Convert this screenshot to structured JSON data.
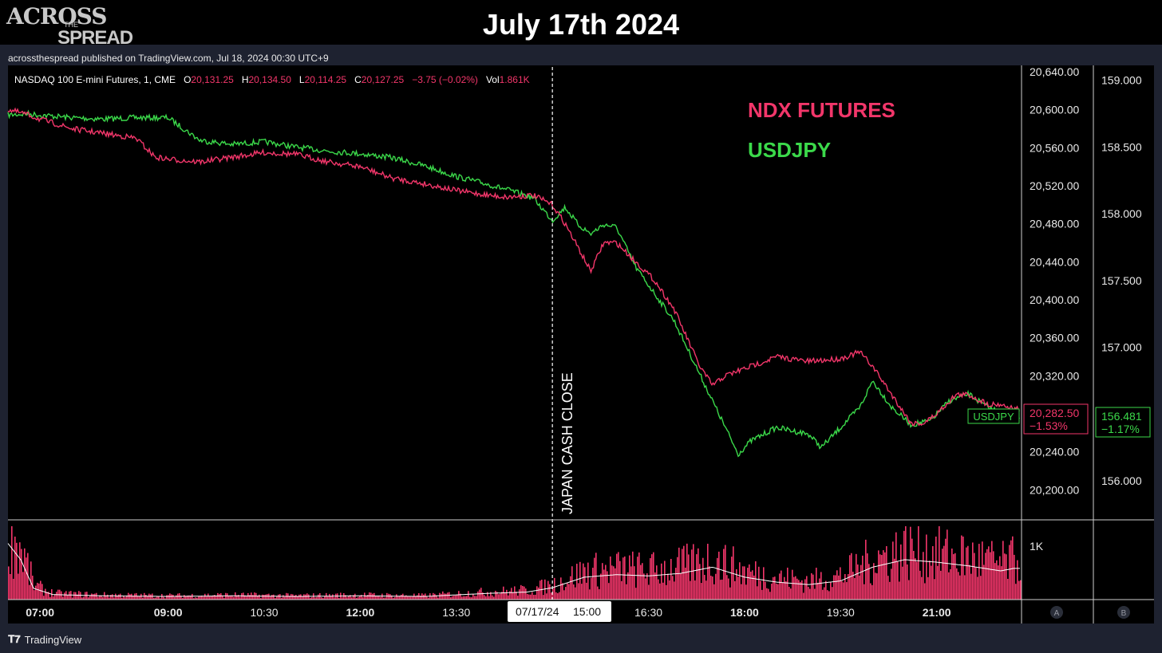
{
  "header": {
    "title": "July 17th 2024",
    "logo_line1": "ACROSS",
    "logo_line2": "THE",
    "logo_line3": "SPREAD",
    "published": "acrossthespread published on TradingView.com, Jul 18, 2024 00:30 UTC+9"
  },
  "legend": {
    "instrument": "NASDAQ 100 E-mini Futures, 1, CME",
    "open_label": "O",
    "open": "20,131.25",
    "high_label": "H",
    "high": "20,134.50",
    "low_label": "L",
    "low": "20,114.25",
    "close_label": "C",
    "close": "20,127.25",
    "change": "−3.75 (−0.02%)",
    "vol_label": "Vol",
    "vol": "1.861K"
  },
  "annotations": {
    "ndx": "NDX FUTURES",
    "usdjpy": "USDJPY",
    "japan_close": "JAPAN CASH CLOSE",
    "usdjpy_tag": "USDJPY",
    "ndx_last_price": "20,282.50",
    "ndx_last_change": "−1.53%",
    "jpy_last_price": "156.481",
    "jpy_last_change": "−1.17%",
    "vol_axis_label": "1K",
    "crosshair_date": "07/17/24",
    "crosshair_time": "15:00",
    "scale_a": "A",
    "scale_b": "B"
  },
  "brand": {
    "name": "TradingView",
    "icon": "tradingview-logo-icon"
  },
  "colors": {
    "ndx": "#f2366a",
    "usdjpy": "#3bd94a",
    "volume": "#f2366a",
    "background": "#000000"
  },
  "chart_data": {
    "type": "line",
    "x_ticks": [
      {
        "label": "07:00",
        "h": 7.0,
        "bold": true
      },
      {
        "label": "09:00",
        "h": 9.0,
        "bold": true
      },
      {
        "label": "10:30",
        "h": 10.5,
        "bold": false
      },
      {
        "label": "12:00",
        "h": 12.0,
        "bold": true
      },
      {
        "label": "13:30",
        "h": 13.5,
        "bold": false
      },
      {
        "label": "16:30",
        "h": 16.5,
        "bold": false
      },
      {
        "label": "18:00",
        "h": 18.0,
        "bold": true
      },
      {
        "label": "19:30",
        "h": 19.5,
        "bold": false
      },
      {
        "label": "21:00",
        "h": 21.0,
        "bold": true
      }
    ],
    "xlim": [
      6.5,
      22.3
    ],
    "left_axis": {
      "ticks": [
        "20,640.00",
        "20,600.00",
        "20,560.00",
        "20,520.00",
        "20,480.00",
        "20,440.00",
        "20,400.00",
        "20,360.00",
        "20,320.00",
        "20,240.00",
        "20,200.00"
      ],
      "tick_values": [
        20640,
        20600,
        20560,
        20520,
        20480,
        20440,
        20400,
        20360,
        20320,
        20240,
        20200
      ],
      "ylim": [
        20170,
        20645
      ]
    },
    "right_axis": {
      "ticks": [
        "159.000",
        "158.500",
        "158.000",
        "157.500",
        "157.000",
        "156.000"
      ],
      "tick_values": [
        159.0,
        158.5,
        158.0,
        157.5,
        157.0,
        156.0
      ],
      "ylim": [
        155.72,
        159.1
      ]
    },
    "japan_cash_close_h": 15.0,
    "series": [
      {
        "name": "NDX FUTURES",
        "axis": "left",
        "x": [
          6.5,
          6.8,
          7.0,
          7.5,
          8.0,
          8.5,
          8.8,
          9.0,
          9.5,
          10.0,
          10.5,
          11.0,
          11.5,
          12.0,
          12.5,
          13.0,
          13.5,
          14.0,
          14.3,
          14.7,
          15.0,
          15.2,
          15.4,
          15.6,
          15.8,
          16.0,
          16.3,
          16.6,
          16.9,
          17.1,
          17.3,
          17.5,
          17.7,
          17.9,
          18.1,
          18.5,
          19.0,
          19.5,
          19.8,
          20.0,
          20.2,
          20.4,
          20.6,
          20.8,
          21.0,
          21.3,
          21.5,
          21.8,
          22.0,
          22.2
        ],
        "values": [
          20600,
          20595,
          20590,
          20580,
          20575,
          20570,
          20550,
          20548,
          20545,
          20550,
          20555,
          20553,
          20545,
          20540,
          20528,
          20522,
          20515,
          20510,
          20508,
          20510,
          20500,
          20480,
          20455,
          20430,
          20460,
          20460,
          20440,
          20420,
          20390,
          20360,
          20330,
          20310,
          20320,
          20325,
          20330,
          20340,
          20335,
          20338,
          20345,
          20330,
          20310,
          20290,
          20270,
          20270,
          20280,
          20300,
          20300,
          20290,
          20290,
          20285
        ]
      },
      {
        "name": "USDJPY",
        "axis": "right",
        "x": [
          6.5,
          6.8,
          7.0,
          7.5,
          8.0,
          8.5,
          9.0,
          9.5,
          10.0,
          10.5,
          11.0,
          11.5,
          12.0,
          12.5,
          13.0,
          13.5,
          14.0,
          14.3,
          14.7,
          15.0,
          15.2,
          15.4,
          15.6,
          15.8,
          16.0,
          16.3,
          16.6,
          16.9,
          17.1,
          17.3,
          17.5,
          17.7,
          17.9,
          18.1,
          18.3,
          18.5,
          19.0,
          19.2,
          19.5,
          19.8,
          20.0,
          20.3,
          20.6,
          20.9,
          21.2,
          21.5,
          21.8,
          22.2
        ],
        "values": [
          158.74,
          158.75,
          158.74,
          158.72,
          158.71,
          158.72,
          158.72,
          158.55,
          158.52,
          158.54,
          158.5,
          158.47,
          158.45,
          158.42,
          158.36,
          158.28,
          158.22,
          158.18,
          158.12,
          157.95,
          158.05,
          157.92,
          157.85,
          157.92,
          157.9,
          157.6,
          157.4,
          157.2,
          157.0,
          156.8,
          156.6,
          156.4,
          156.2,
          156.3,
          156.35,
          156.4,
          156.35,
          156.25,
          156.4,
          156.55,
          156.75,
          156.55,
          156.42,
          156.45,
          156.6,
          156.65,
          156.55,
          156.48
        ]
      }
    ],
    "volume": {
      "x": [
        6.5,
        6.7,
        6.9,
        7.2,
        8.0,
        9.0,
        10.0,
        11.0,
        12.0,
        13.0,
        14.0,
        14.6,
        15.0,
        15.5,
        16.0,
        16.5,
        17.0,
        17.5,
        18.0,
        18.5,
        19.0,
        19.5,
        20.0,
        20.5,
        21.0,
        21.5,
        22.0,
        22.2
      ],
      "values": [
        450,
        320,
        90,
        40,
        30,
        25,
        30,
        25,
        30,
        25,
        50,
        60,
        95,
        180,
        200,
        190,
        210,
        260,
        180,
        140,
        120,
        150,
        260,
        320,
        300,
        270,
        230,
        250
      ]
    }
  }
}
